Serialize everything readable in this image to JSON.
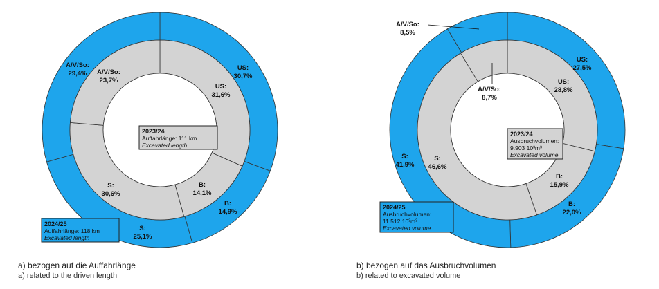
{
  "colors": {
    "outer_ring": "#1ea5ec",
    "inner_ring": "#d3d3d3",
    "divider": "#333333",
    "box_outer": "#1ea5ec",
    "box_inner": "#d3d3d3"
  },
  "chart_data": [
    {
      "type": "donut",
      "caption": "a) bezogen auf die Auffahrlänge",
      "caption_en": "a) related to the driven length",
      "categories": [
        "US",
        "B",
        "S",
        "A/V/So"
      ],
      "series": [
        {
          "name": "2023/24",
          "ring": "inner",
          "values": [
            31.6,
            14.1,
            30.6,
            23.7
          ],
          "labels": [
            "US:",
            "B:",
            "S:",
            "A/V/So:"
          ],
          "value_labels": [
            "31,6%",
            "14,1%",
            "30,6%",
            "23,7%"
          ],
          "box": {
            "title": "2023/24",
            "line1": "Auffahrlänge: 111 km",
            "line2": "Excavated length"
          }
        },
        {
          "name": "2024/25",
          "ring": "outer",
          "values": [
            30.7,
            14.9,
            25.1,
            29.4
          ],
          "labels": [
            "US:",
            "B:",
            "S:",
            "A/V/So:"
          ],
          "value_labels": [
            "30,7%",
            "14,9%",
            "25,1%",
            "29,4%"
          ],
          "box": {
            "title": "2024/25",
            "line1": "Auffahrlänge: 118 km",
            "line2": "Excavated length"
          }
        }
      ]
    },
    {
      "type": "donut",
      "caption": "b) bezogen auf das Ausbruchvolumen",
      "caption_en": "b) related to excavated volume",
      "categories": [
        "US",
        "B",
        "S",
        "A/V/So"
      ],
      "series": [
        {
          "name": "2023/24",
          "ring": "inner",
          "values": [
            28.8,
            15.9,
            46.6,
            8.7
          ],
          "labels": [
            "US:",
            "B:",
            "S:",
            "A/V/So:"
          ],
          "value_labels": [
            "28,8%",
            "15,9%",
            "46,6%",
            "8,7%"
          ],
          "box": {
            "title": "2023/24",
            "line1": "Ausbruchvolumen:",
            "line2": "9.903 10³m³",
            "line3": "Excavated volume"
          }
        },
        {
          "name": "2024/25",
          "ring": "outer",
          "values": [
            27.5,
            22.0,
            41.9,
            8.5
          ],
          "labels": [
            "US:",
            "B:",
            "S:",
            "A/V/So:"
          ],
          "value_labels": [
            "27,5%",
            "22,0%",
            "41,9%",
            "8,5%"
          ],
          "box": {
            "title": "2024/25",
            "line1": "Ausbruchvolumen:",
            "line2": "11.512 10³m³",
            "line3": "Excavated volume"
          }
        }
      ]
    }
  ]
}
